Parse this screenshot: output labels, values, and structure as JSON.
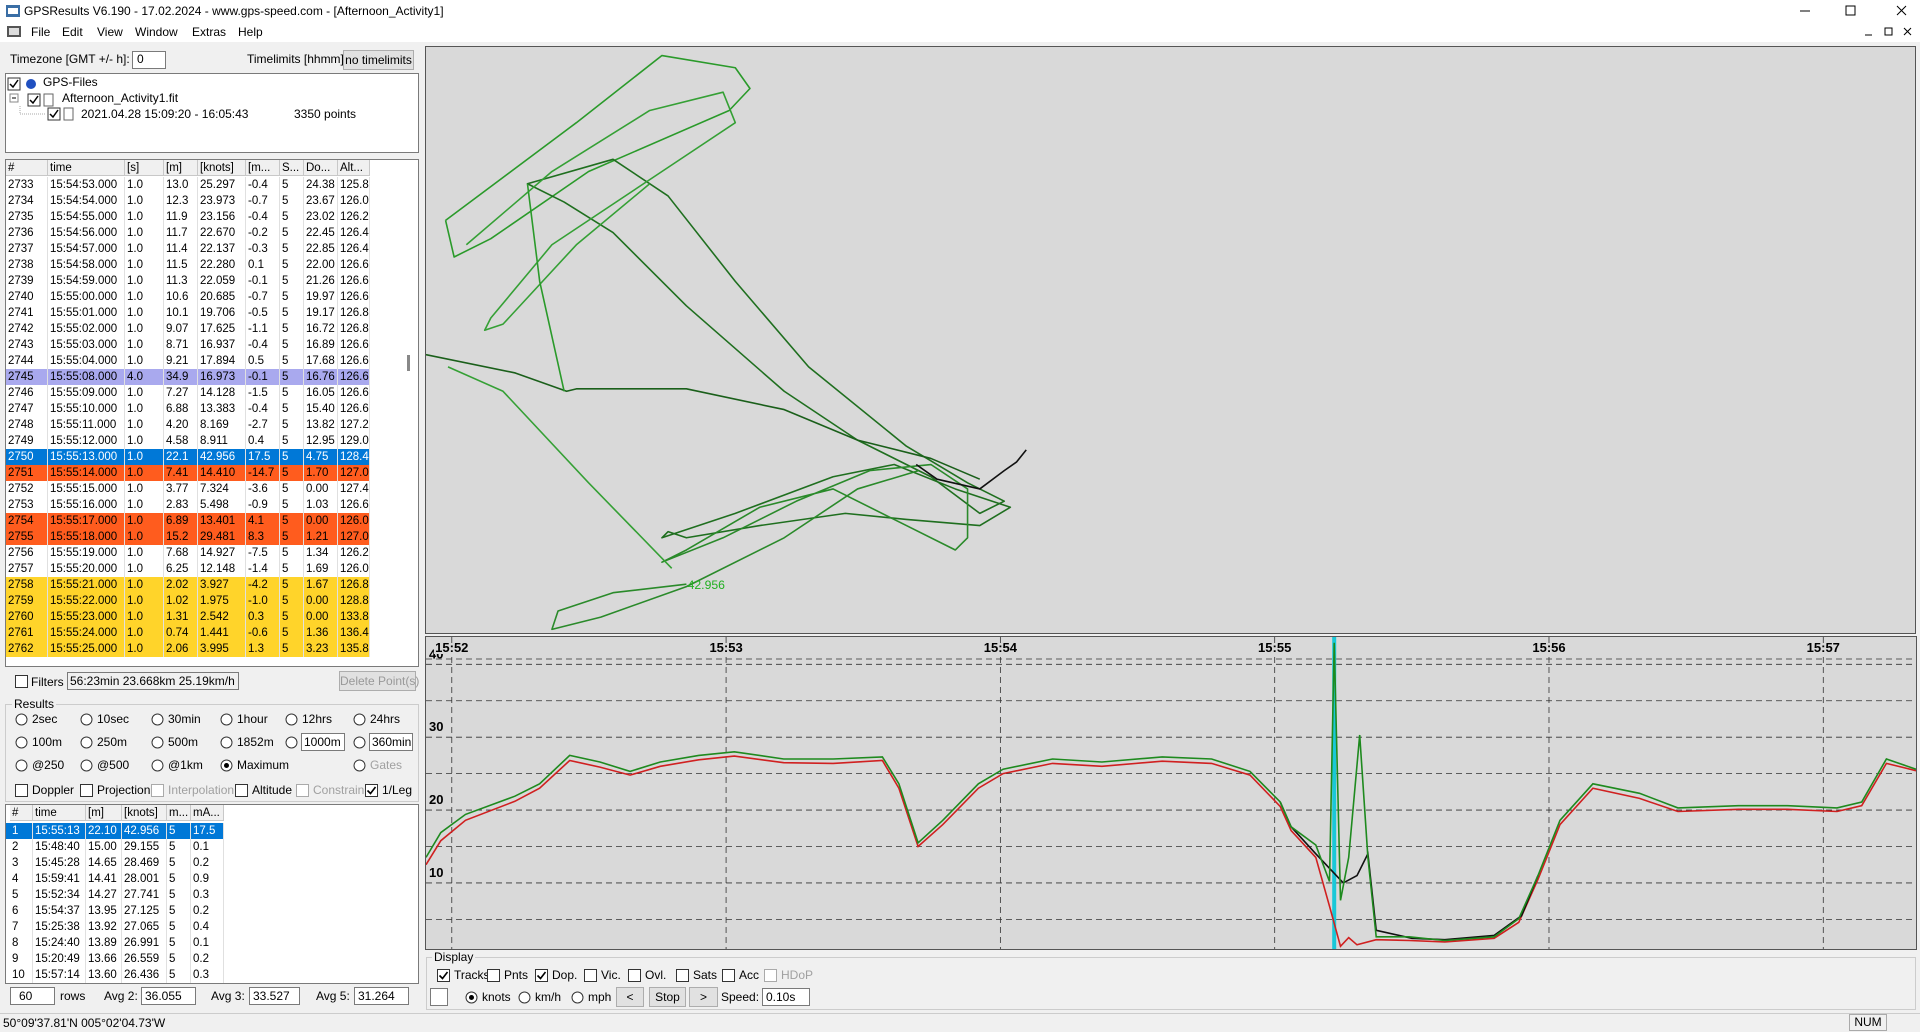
{
  "window": {
    "title": "GPSResults V6.190 - 17.02.2024 - www.gps-speed.com - [Afternoon_Activity1]",
    "menu": [
      "File",
      "Edit",
      "View",
      "Window",
      "Extras",
      "Help"
    ]
  },
  "settings": {
    "timezone_label": "Timezone [GMT +/- h]:",
    "timezone": "0",
    "timelimits_label": "Timelimits [hhmm]:",
    "timelimits": "no timelimits"
  },
  "tree": {
    "root": "GPS-Files",
    "file": "Afternoon_Activity1.fit",
    "session": "2021.04.28 15:09:20 - 16:05:43",
    "points": "3350 points"
  },
  "points_table": {
    "headers": [
      "#",
      "time",
      "[s]",
      "[m]",
      "[knots]",
      "[m...",
      "S...",
      "Do...",
      "Alt..."
    ],
    "rows": [
      [
        "2733",
        "15:54:53.000",
        "1.0",
        "13.0",
        "25.297",
        "-0.4",
        "5",
        "24.38",
        "125.8"
      ],
      [
        "2734",
        "15:54:54.000",
        "1.0",
        "12.3",
        "23.973",
        "-0.7",
        "5",
        "23.67",
        "126.0"
      ],
      [
        "2735",
        "15:54:55.000",
        "1.0",
        "11.9",
        "23.156",
        "-0.4",
        "5",
        "23.02",
        "126.2"
      ],
      [
        "2736",
        "15:54:56.000",
        "1.0",
        "11.7",
        "22.670",
        "-0.2",
        "5",
        "22.45",
        "126.4"
      ],
      [
        "2737",
        "15:54:57.000",
        "1.0",
        "11.4",
        "22.137",
        "-0.3",
        "5",
        "22.85",
        "126.4"
      ],
      [
        "2738",
        "15:54:58.000",
        "1.0",
        "11.5",
        "22.280",
        "0.1",
        "5",
        "22.00",
        "126.6"
      ],
      [
        "2739",
        "15:54:59.000",
        "1.0",
        "11.3",
        "22.059",
        "-0.1",
        "5",
        "21.26",
        "126.6"
      ],
      [
        "2740",
        "15:55:00.000",
        "1.0",
        "10.6",
        "20.685",
        "-0.7",
        "5",
        "19.97",
        "126.6"
      ],
      [
        "2741",
        "15:55:01.000",
        "1.0",
        "10.1",
        "19.706",
        "-0.5",
        "5",
        "19.17",
        "126.8"
      ],
      [
        "2742",
        "15:55:02.000",
        "1.0",
        "9.07",
        "17.625",
        "-1.1",
        "5",
        "16.72",
        "126.8"
      ],
      [
        "2743",
        "15:55:03.000",
        "1.0",
        "8.71",
        "16.937",
        "-0.4",
        "5",
        "16.89",
        "126.6"
      ],
      [
        "2744",
        "15:55:04.000",
        "1.0",
        "9.21",
        "17.894",
        "0.5",
        "5",
        "17.68",
        "126.6"
      ],
      [
        "2745",
        "15:55:08.000",
        "4.0",
        "34.9",
        "16.973",
        "-0.1",
        "5",
        "16.76",
        "126.6"
      ],
      [
        "2746",
        "15:55:09.000",
        "1.0",
        "7.27",
        "14.128",
        "-1.5",
        "5",
        "16.05",
        "126.6"
      ],
      [
        "2747",
        "15:55:10.000",
        "1.0",
        "6.88",
        "13.383",
        "-0.4",
        "5",
        "15.40",
        "126.6"
      ],
      [
        "2748",
        "15:55:11.000",
        "1.0",
        "4.20",
        "8.169",
        "-2.7",
        "5",
        "13.82",
        "127.2"
      ],
      [
        "2749",
        "15:55:12.000",
        "1.0",
        "4.58",
        "8.911",
        "0.4",
        "5",
        "12.95",
        "129.0"
      ],
      [
        "2750",
        "15:55:13.000",
        "1.0",
        "22.1",
        "42.956",
        "17.5",
        "5",
        "4.75",
        "128.4"
      ],
      [
        "2751",
        "15:55:14.000",
        "1.0",
        "7.41",
        "14.410",
        "-14.7",
        "5",
        "1.70",
        "127.0"
      ],
      [
        "2752",
        "15:55:15.000",
        "1.0",
        "3.77",
        "7.324",
        "-3.6",
        "5",
        "0.00",
        "127.4"
      ],
      [
        "2753",
        "15:55:16.000",
        "1.0",
        "2.83",
        "5.498",
        "-0.9",
        "5",
        "1.03",
        "126.6"
      ],
      [
        "2754",
        "15:55:17.000",
        "1.0",
        "6.89",
        "13.401",
        "4.1",
        "5",
        "0.00",
        "126.0"
      ],
      [
        "2755",
        "15:55:18.000",
        "1.0",
        "15.2",
        "29.481",
        "8.3",
        "5",
        "1.21",
        "127.0"
      ],
      [
        "2756",
        "15:55:19.000",
        "1.0",
        "7.68",
        "14.927",
        "-7.5",
        "5",
        "1.34",
        "126.2"
      ],
      [
        "2757",
        "15:55:20.000",
        "1.0",
        "6.25",
        "12.148",
        "-1.4",
        "5",
        "1.69",
        "126.0"
      ],
      [
        "2758",
        "15:55:21.000",
        "1.0",
        "2.02",
        "3.927",
        "-4.2",
        "5",
        "1.67",
        "126.8"
      ],
      [
        "2759",
        "15:55:22.000",
        "1.0",
        "1.02",
        "1.975",
        "-1.0",
        "5",
        "0.00",
        "128.8"
      ],
      [
        "2760",
        "15:55:23.000",
        "1.0",
        "1.31",
        "2.542",
        "0.3",
        "5",
        "0.00",
        "133.8"
      ],
      [
        "2761",
        "15:55:24.000",
        "1.0",
        "0.74",
        "1.441",
        "-0.6",
        "5",
        "1.36",
        "136.4"
      ],
      [
        "2762",
        "15:55:25.000",
        "1.0",
        "2.06",
        "3.995",
        "1.3",
        "5",
        "3.23",
        "135.8"
      ]
    ],
    "row_colors": [
      null,
      null,
      null,
      null,
      null,
      null,
      null,
      null,
      null,
      null,
      null,
      null,
      "#a9a9ee",
      null,
      null,
      null,
      null,
      null,
      "#ff5c1e",
      null,
      null,
      "#ff5c1e",
      "#ff5c1e",
      null,
      null,
      "#ffd42a",
      "#ffd42a",
      "#ffd42a",
      "#ffd42a",
      "#ffd42a"
    ],
    "selected_row": 17
  },
  "filters": {
    "label": "Filters",
    "summary": "56:23min 23.668km 25.19km/h",
    "delete": "Delete Point(s)"
  },
  "results": {
    "title": "Results",
    "options": [
      {
        "label": "2sec",
        "kind": "radio",
        "checked": false
      },
      {
        "label": "10sec",
        "kind": "radio",
        "checked": false
      },
      {
        "label": "30min",
        "kind": "radio",
        "checked": false
      },
      {
        "label": "1hour",
        "kind": "radio",
        "checked": false
      },
      {
        "label": "12hrs",
        "kind": "radio",
        "checked": false
      },
      {
        "label": "24hrs",
        "kind": "radio",
        "checked": false
      },
      {
        "label": "100m",
        "kind": "radio",
        "checked": false
      },
      {
        "label": "250m",
        "kind": "radio",
        "checked": false
      },
      {
        "label": "500m",
        "kind": "radio",
        "checked": false
      },
      {
        "label": "1852m",
        "kind": "radio",
        "checked": false
      },
      {
        "label": "1000m",
        "kind": "radio",
        "checked": false,
        "boxed": true
      },
      {
        "label": "360min",
        "kind": "radio",
        "checked": false,
        "boxed": true
      },
      {
        "label": "@250",
        "kind": "radio",
        "checked": false
      },
      {
        "label": "@500",
        "kind": "radio",
        "checked": false
      },
      {
        "label": "@1km",
        "kind": "radio",
        "checked": false
      },
      {
        "label": "Maximum",
        "kind": "radio",
        "checked": true
      },
      {
        "label": "Gates",
        "kind": "radio",
        "checked": false,
        "disabled": true
      },
      {
        "label": "Doppler",
        "kind": "checkbox",
        "checked": false
      },
      {
        "label": "Projection",
        "kind": "checkbox",
        "checked": false
      },
      {
        "label": "Interpolation",
        "kind": "checkbox",
        "checked": false,
        "disabled": true
      },
      {
        "label": "Altitude",
        "kind": "checkbox",
        "checked": false
      },
      {
        "label": "Constrain",
        "kind": "checkbox",
        "checked": false,
        "disabled": true
      },
      {
        "label": "1/Leg",
        "kind": "checkbox",
        "checked": true
      }
    ],
    "table": {
      "headers": [
        "#",
        "time",
        "[m]",
        "[knots]",
        "m...",
        "mA..."
      ],
      "rows": [
        [
          "1",
          "15:55:13",
          "22.10",
          "42.956",
          "5",
          "17.5"
        ],
        [
          "2",
          "15:48:40",
          "15.00",
          "29.155",
          "5",
          "0.1"
        ],
        [
          "3",
          "15:45:28",
          "14.65",
          "28.469",
          "5",
          "0.2"
        ],
        [
          "4",
          "15:59:41",
          "14.41",
          "28.001",
          "5",
          "0.9"
        ],
        [
          "5",
          "15:52:34",
          "14.27",
          "27.741",
          "5",
          "0.3"
        ],
        [
          "6",
          "15:54:37",
          "13.95",
          "27.125",
          "5",
          "0.2"
        ],
        [
          "7",
          "15:25:38",
          "13.92",
          "27.065",
          "5",
          "0.4"
        ],
        [
          "8",
          "15:24:40",
          "13.89",
          "26.991",
          "5",
          "0.1"
        ],
        [
          "9",
          "15:20:49",
          "13.66",
          "26.559",
          "5",
          "0.2"
        ],
        [
          "10",
          "15:57:14",
          "13.60",
          "26.436",
          "5",
          "0.3"
        ]
      ],
      "selected_row": 0
    },
    "rows_count": "60",
    "rows_label": "rows",
    "averages": [
      {
        "label": "Avg 2:",
        "value": "36.055"
      },
      {
        "label": "Avg 3:",
        "value": "33.527"
      },
      {
        "label": "Avg 5:",
        "value": "31.264"
      }
    ]
  },
  "display": {
    "title": "Display",
    "options": [
      {
        "label": "Tracks",
        "kind": "checkbox",
        "checked": true
      },
      {
        "label": "Pnts",
        "kind": "checkbox",
        "checked": false
      },
      {
        "label": "Dop.",
        "kind": "checkbox",
        "checked": true
      },
      {
        "label": "Vic.",
        "kind": "checkbox",
        "checked": false
      },
      {
        "label": "Ovl.",
        "kind": "checkbox",
        "checked": false
      },
      {
        "label": "Sats",
        "kind": "checkbox",
        "checked": false
      },
      {
        "label": "Acc",
        "kind": "checkbox",
        "checked": false
      },
      {
        "label": "HDoP",
        "kind": "checkbox",
        "checked": false,
        "disabled": true
      },
      {
        "label": "knots",
        "kind": "radio",
        "checked": true
      },
      {
        "label": "km/h",
        "kind": "radio",
        "checked": false
      },
      {
        "label": "mph",
        "kind": "radio",
        "checked": false
      }
    ],
    "prev": "<",
    "stop": "Stop",
    "next": ">",
    "speed_label": "Speed:",
    "speed": "0.10s"
  },
  "map": {
    "speed_label": "42.956"
  },
  "chart_data": {
    "type": "line",
    "xlim": [
      951.906,
      957.338
    ],
    "ylim": [
      0.93,
      43.75
    ],
    "xticks": [
      {
        "value": 952,
        "label": "15:52"
      },
      {
        "value": 953,
        "label": "15:53"
      },
      {
        "value": 954,
        "label": "15:54"
      },
      {
        "value": 955,
        "label": "15:55"
      },
      {
        "value": 956,
        "label": "15:56"
      },
      {
        "value": 957,
        "label": "15:57"
      }
    ],
    "yticks": [
      10,
      20,
      30,
      40
    ],
    "y_minor_ticks": [
      5,
      15,
      25,
      35
    ],
    "grid": true,
    "cursor_x": 955.217,
    "series": [
      {
        "color": "#d02020",
        "x": [
          951.906,
          951.96,
          952.05,
          952.23,
          952.32,
          952.43,
          952.54,
          952.65,
          952.76,
          952.9,
          953.03,
          953.21,
          953.39,
          953.57,
          953.63,
          953.7,
          953.79,
          953.92,
          954.01,
          954.19,
          954.37,
          954.59,
          954.77,
          954.91,
          955.02,
          955.06,
          955.15,
          955.2,
          955.24,
          955.27,
          955.3,
          955.37,
          955.49,
          955.62,
          955.8,
          955.89,
          955.96,
          956.04,
          956.16,
          956.33,
          956.47,
          956.69,
          956.87,
          957.05,
          957.14,
          957.23,
          957.338
        ],
        "values": [
          12.5,
          15.8,
          18.6,
          21.2,
          23.0,
          26.8,
          25.9,
          24.8,
          26.0,
          26.9,
          27.4,
          26.5,
          26.4,
          26.8,
          23.0,
          15.0,
          18.0,
          23.0,
          25.0,
          26.4,
          26.0,
          26.7,
          26.4,
          24.8,
          20.5,
          17.2,
          13.5,
          6.8,
          1.3,
          2.5,
          1.5,
          2.2,
          2.1,
          1.9,
          2.4,
          4.6,
          10.5,
          18.0,
          23.0,
          21.6,
          19.8,
          20.1,
          20.1,
          19.8,
          20.6,
          26.4,
          25.4
        ]
      },
      {
        "color": "#111111",
        "x": [
          955.02,
          955.06,
          955.15,
          955.2,
          955.25,
          955.3,
          955.34,
          955.37,
          955.5,
          955.62,
          955.8,
          955.9,
          955.96
        ],
        "values": [
          21.1,
          17.7,
          14.0,
          12.0,
          10.0,
          11.0,
          14.0,
          3.5,
          2.4,
          2.2,
          2.8,
          5.5,
          11.0
        ]
      },
      {
        "color": "#1e8a1e",
        "x": [
          951.906,
          951.96,
          952.05,
          952.23,
          952.32,
          952.43,
          952.54,
          952.65,
          952.76,
          952.9,
          953.03,
          953.21,
          953.39,
          953.57,
          953.63,
          953.7,
          953.79,
          953.92,
          954.01,
          954.19,
          954.37,
          954.59,
          954.77,
          954.91,
          955.02,
          955.06,
          955.15,
          955.2,
          955.217,
          955.24,
          955.27,
          955.31,
          955.34,
          955.37,
          955.49,
          955.62,
          955.8,
          955.89,
          955.96,
          956.04,
          956.16,
          956.33,
          956.47,
          956.69,
          956.87,
          957.05,
          957.14,
          957.23,
          957.338
        ],
        "values": [
          13.5,
          16.9,
          19.4,
          21.9,
          23.6,
          27.5,
          26.6,
          25.3,
          26.6,
          27.5,
          28.0,
          27.0,
          27.0,
          27.3,
          23.6,
          15.5,
          18.6,
          23.6,
          25.6,
          27.0,
          26.6,
          27.3,
          27.0,
          25.3,
          21.1,
          17.7,
          15.2,
          10.2,
          42.956,
          7.6,
          13.5,
          30.3,
          13.5,
          2.6,
          2.6,
          2.1,
          2.6,
          5.1,
          11.0,
          18.6,
          23.6,
          22.3,
          20.3,
          20.6,
          20.6,
          20.3,
          21.1,
          27.0,
          25.6
        ]
      }
    ]
  },
  "status": {
    "coords": "50°09'37.81'N 005°02'04.73'W",
    "num": "NUM"
  }
}
